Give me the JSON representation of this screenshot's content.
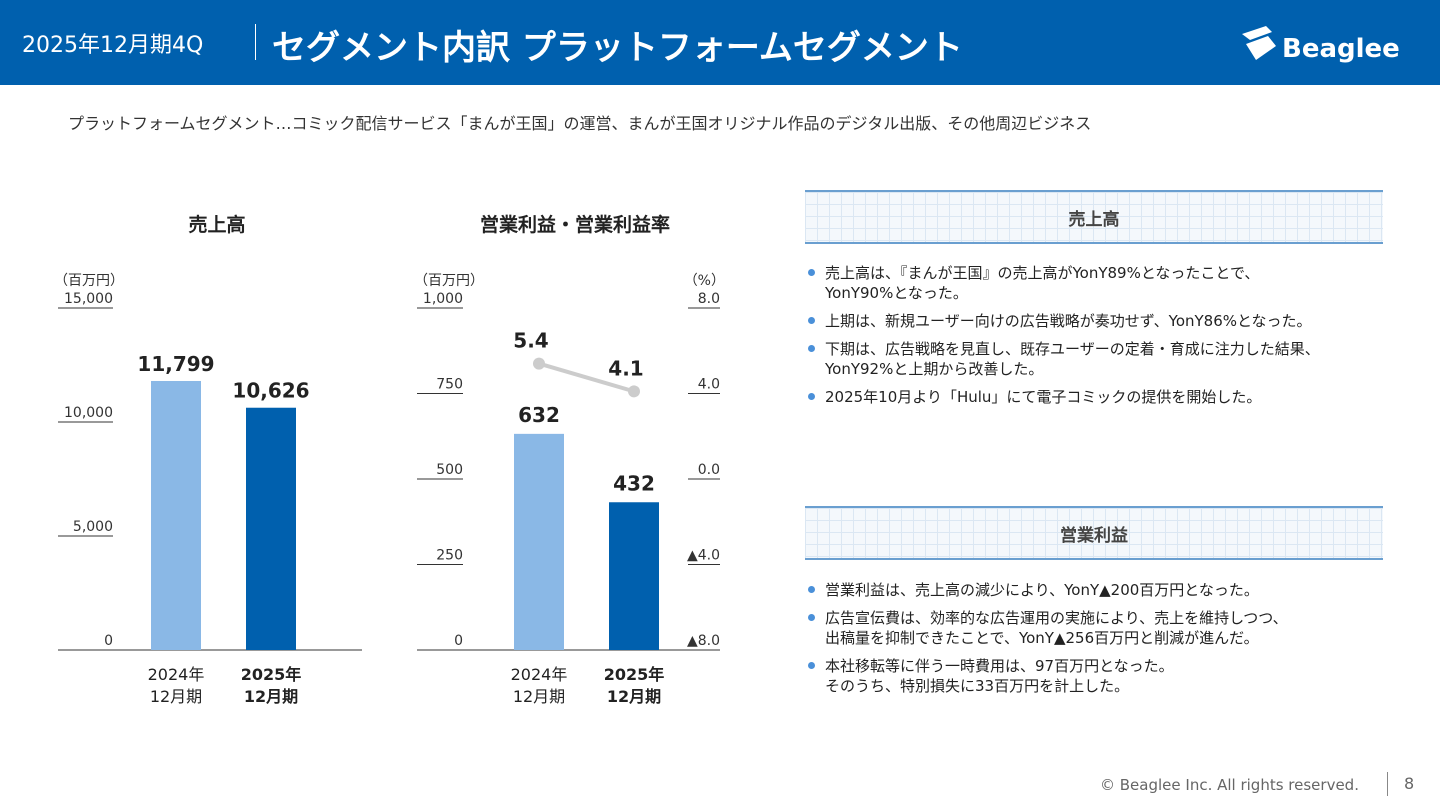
{
  "header": {
    "period": "2025年12月期4Q",
    "title": "セグメント内訳 プラットフォームセグメント",
    "logo_text": "Beaglee"
  },
  "description": "プラットフォームセグメント…コミック配信サービス「まんが王国」の運営、まんが王国オリジナル作品のデジタル出版、その他周辺ビジネス",
  "chart_data": [
    {
      "type": "bar",
      "title": "売上高",
      "unit_label": "（百万円）",
      "categories": [
        "2024年\n12月期",
        "2025年\n12月期"
      ],
      "category_lines": [
        [
          "2024年",
          "12月期"
        ],
        [
          "2025年",
          "12月期"
        ]
      ],
      "values": [
        11799,
        10626
      ],
      "value_labels": [
        "11,799",
        "10,626"
      ],
      "ylim": [
        0,
        15000
      ],
      "yticks": [
        0,
        5000,
        10000,
        15000
      ],
      "ytick_labels": [
        "0",
        "5,000",
        "10,000",
        "15,000"
      ],
      "bar_colors": [
        "#8ab8e6",
        "#0060ae"
      ]
    },
    {
      "type": "bar+line",
      "title": "営業利益・営業利益率",
      "unit_label_left": "（百万円）",
      "unit_label_right": "（%）",
      "categories": [
        "2024年\n12月期",
        "2025年\n12月期"
      ],
      "category_lines": [
        [
          "2024年",
          "12月期"
        ],
        [
          "2025年",
          "12月期"
        ]
      ],
      "bar_values": [
        632,
        432
      ],
      "bar_value_labels": [
        "632",
        "432"
      ],
      "line_values": [
        5.4,
        4.1
      ],
      "line_value_labels": [
        "5.4",
        "4.1"
      ],
      "ylim_left": [
        0,
        1000
      ],
      "yticks_left": [
        0,
        250,
        500,
        750,
        1000
      ],
      "ytick_labels_left": [
        "0",
        "250",
        "500",
        "750",
        "1,000"
      ],
      "ylim_right": [
        -8,
        8
      ],
      "yticks_right": [
        -8,
        -4,
        0,
        4,
        8
      ],
      "ytick_labels_right": [
        "▲8.0",
        "▲4.0",
        "0.0",
        "4.0",
        "8.0"
      ],
      "bar_colors": [
        "#8ab8e6",
        "#0060ae"
      ],
      "line_color": "#cccccc"
    }
  ],
  "panels": [
    {
      "title": "売上高",
      "bullets": [
        "売上高は、『まんが王国』の売上高がYonY89%となったことで、\nYonY90%となった。",
        "上期は、新規ユーザー向けの広告戦略が奏功せず、YonY86%となった。",
        "下期は、広告戦略を見直し、既存ユーザーの定着・育成に注力した結果、\nYonY92%と上期から改善した。",
        "2025年10月より「Hulu」にて電子コミックの提供を開始した。"
      ]
    },
    {
      "title": "営業利益",
      "bullets": [
        "営業利益は、売上高の減少により、YonY▲200百万円となった。",
        "広告宣伝費は、効率的な広告運用の実施により、売上を維持しつつ、\n出稿量を抑制できたことで、YonY▲256百万円と削減が進んだ。",
        "本社移転等に伴う一時費用は、97百万円となった。\nそのうち、特別損失に33百万円を計上した。"
      ]
    }
  ],
  "footer": {
    "copyright": "© Beaglee Inc. All rights reserved.",
    "page": "8"
  },
  "colors": {
    "brand": "#0060ae",
    "bar_light": "#8ab8e6",
    "bar_dark": "#0060ae",
    "bullet": "#4a90d9"
  }
}
